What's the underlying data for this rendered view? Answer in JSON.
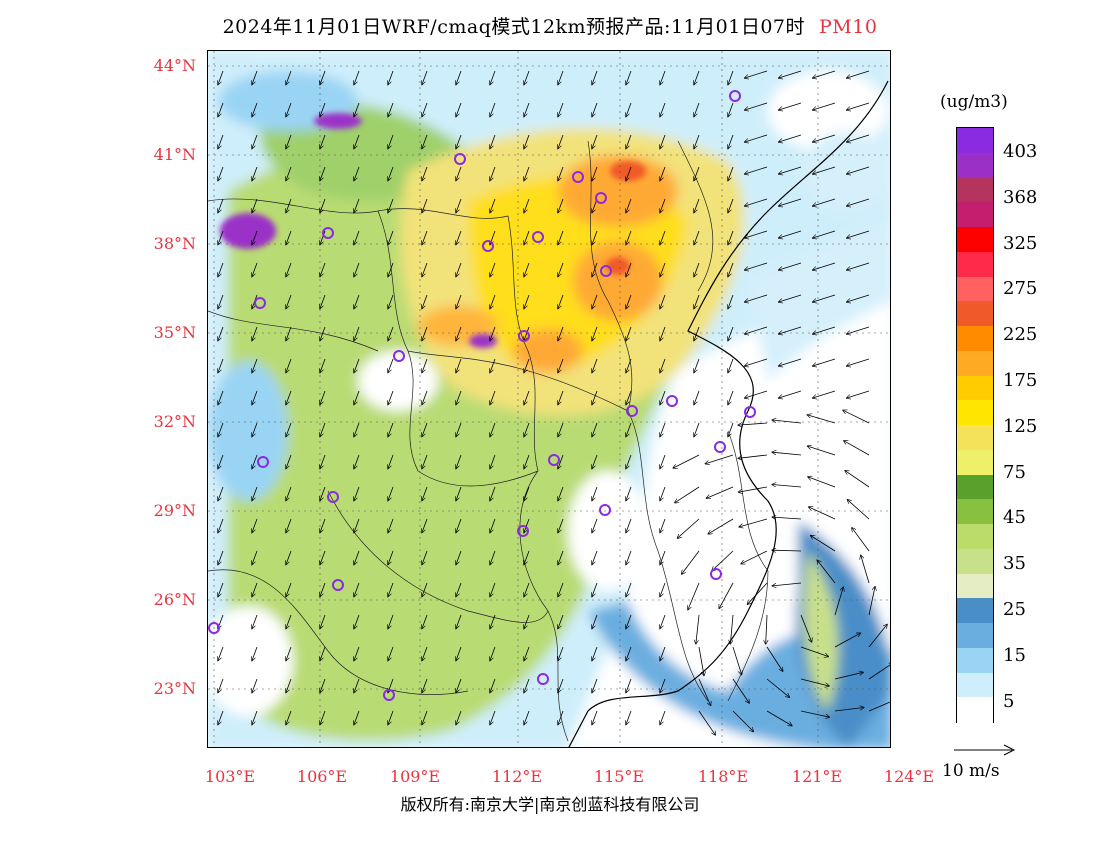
{
  "header": {
    "title": "2024年11月01日WRF/cmaq模式12km预报产品:11月01日07时",
    "pollutant": "PM10"
  },
  "axes": {
    "lat_labels": [
      "44°N",
      "41°N",
      "38°N",
      "35°N",
      "32°N",
      "29°N",
      "26°N",
      "23°N"
    ],
    "lon_labels": [
      "103°E",
      "106°E",
      "109°E",
      "112°E",
      "115°E",
      "118°E",
      "121°E",
      "124°E"
    ]
  },
  "colorbar": {
    "unit": "(ug/m3)",
    "labels": [
      "403",
      "368",
      "325",
      "275",
      "225",
      "175",
      "125",
      "75",
      "45",
      "35",
      "25",
      "15",
      "5"
    ],
    "colors": [
      "#8a2be2",
      "#9b30c8",
      "#b5335f",
      "#c41e6e",
      "#ff0000",
      "#ff2a4a",
      "#ff6060",
      "#f05a28",
      "#ff8c00",
      "#ffaa22",
      "#ffcc00",
      "#ffe600",
      "#f4e35a",
      "#eef06a",
      "#5aa02c",
      "#88c040",
      "#bbdc6a",
      "#c8e08a",
      "#e4edc4",
      "#4a8ec8",
      "#6aaee0",
      "#9ad4f4",
      "#cdeefa",
      "#ffffff"
    ]
  },
  "wind_legend": {
    "label": "10 m/s"
  },
  "copyright": "版权所有:南京大学|南京创蓝科技有限公司"
}
